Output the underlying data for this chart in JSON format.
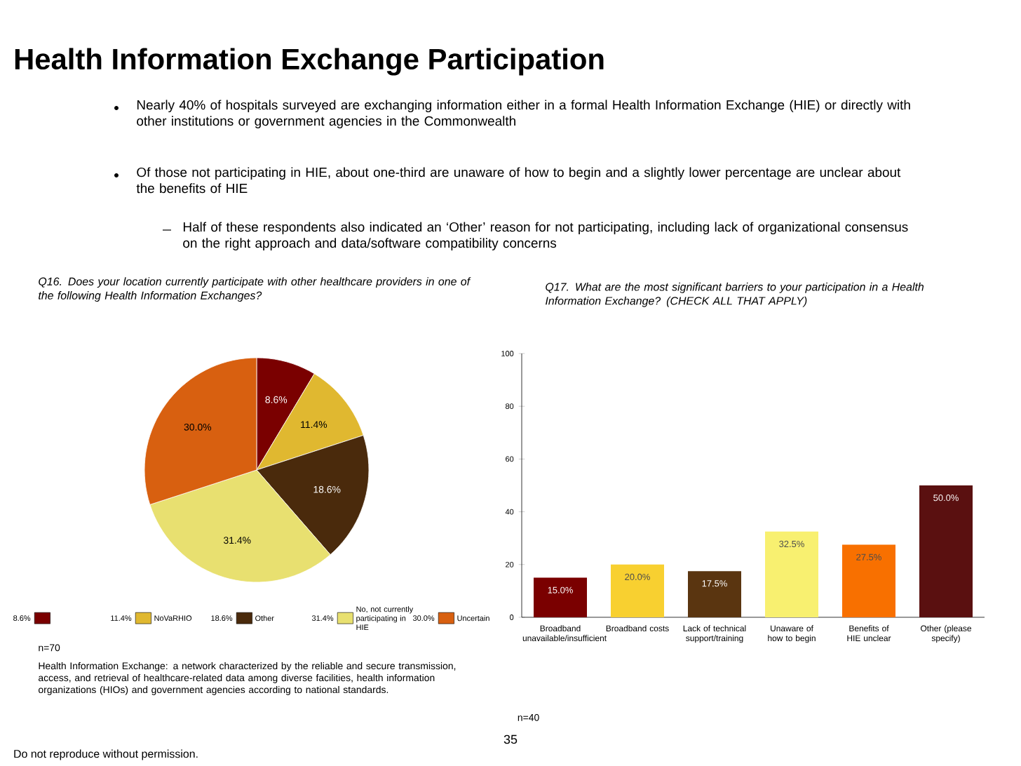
{
  "chart_data": [
    {
      "type": "other",
      "title": "Health Information Exchange Participation",
      "annotations": [
        "Nearly 40% of hospitals surveyed are exchanging information either in a formal Health Information Exchange (HIE) or directly with other institutions or government agencies in the Commonwealth",
        "Of those not participating in HIE, about one-third are unaware of how to begin and a slightly lower percentage are unclear about the benefits of HIE",
        "Half of these respondents also indicated an ‘Other’ reason for not participating, including lack of organizational consensus on the right approach and data/software compatibility concerns",
        "35",
        "Do not reproduce without permission."
      ]
    },
    {
      "type": "pie",
      "title": "Q16. Does your location currently participate with other healthcare providers in one of the following Health Information Exchanges?",
      "categories": [
        null,
        "NoVaRHIO",
        "Other",
        "No, not currently participating in HIE",
        "Uncertain"
      ],
      "values": [
        8.6,
        11.4,
        18.6,
        31.4,
        30.0
      ],
      "value_labels": [
        "8.6%",
        "11.4%",
        "18.6%",
        "31.4%",
        "30.0%"
      ],
      "colors": [
        "#7a0000",
        "#e0b830",
        "#4a2a0c",
        "#e8e070",
        "#d86010"
      ],
      "legend": "bottom",
      "annotations": [
        "n=70",
        "Health Information Exchange: a network characterized by the reliable and secure transmission, access, and retrieval of healthcare-related data among diverse facilities, health information organizations (HIOs) and government agencies according to national standards."
      ]
    },
    {
      "type": "bar",
      "title": "Q17. What are the most significant barriers to your participation in a Health Information Exchange? (CHECK ALL THAT APPLY)",
      "categories": [
        "Broadband unavailable/insufficient",
        "Broadband costs",
        "Lack of technical support/training",
        "Unaware of how to begin",
        "Benefits of HIE unclear",
        "Other (please specify)"
      ],
      "values": [
        15.0,
        20.0,
        17.5,
        32.5,
        27.5,
        50.0
      ],
      "value_labels": [
        "15.0%",
        "20.0%",
        "17.5%",
        "32.5%",
        "27.5%",
        "50.0%"
      ],
      "colors": [
        "#7a0000",
        "#f8d030",
        "#5a3510",
        "#f8f070",
        "#f87000",
        "#5a1010"
      ],
      "ylim": [
        0,
        100
      ],
      "yticks": [
        0,
        20,
        40,
        60,
        80,
        100
      ],
      "annotations": [
        "n=40"
      ]
    }
  ]
}
